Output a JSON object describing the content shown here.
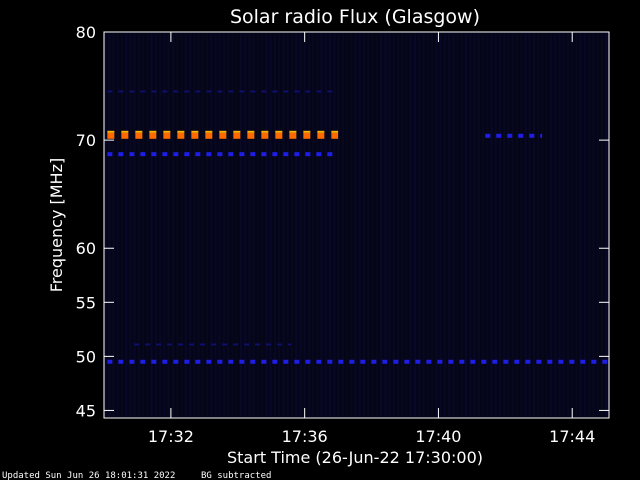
{
  "colors": {
    "background": "#000000",
    "plot_background": "#05051a",
    "axis": "#ffffff",
    "text": "#ffffff",
    "dark_blue": "#0f0f6e",
    "blue": "#1e1ee6",
    "purple": "#5a1ea8",
    "orange": "#ff6a00"
  },
  "chart_data": {
    "type": "heatmap",
    "title": "Solar radio Flux (Glasgow)",
    "xlabel": "Start Time (26-Jun-22 17:30:00)",
    "ylabel": "Frequency [MHz]",
    "x_unit": "minutes after 17:30",
    "xlim": [
      0,
      15.1
    ],
    "ylim": [
      80,
      44.3
    ],
    "x_ticks": [
      {
        "value": 2,
        "label": "17:32"
      },
      {
        "value": 6,
        "label": "17:36"
      },
      {
        "value": 10,
        "label": "17:40"
      },
      {
        "value": 14,
        "label": "17:44"
      }
    ],
    "y_ticks": [
      {
        "value": 45,
        "label": "45"
      },
      {
        "value": 50,
        "label": "50"
      },
      {
        "value": 55,
        "label": "55"
      },
      {
        "value": 60,
        "label": "60"
      },
      {
        "value": 70,
        "label": "70"
      },
      {
        "value": 80,
        "label": "80"
      }
    ],
    "emission_bands": [
      {
        "freq": 49.5,
        "t_start": 0.1,
        "t_end": 15.1,
        "intensity": "blue"
      },
      {
        "freq": 51.1,
        "t_start": 0.9,
        "t_end": 5.6,
        "intensity": "dark_blue"
      },
      {
        "freq": 68.7,
        "t_start": 0.1,
        "t_end": 7.0,
        "intensity": "blue"
      },
      {
        "freq": 70.4,
        "t_start": 0.1,
        "t_end": 7.0,
        "intensity": "orange"
      },
      {
        "freq": 70.4,
        "t_start": 11.4,
        "t_end": 13.1,
        "intensity": "blue"
      },
      {
        "freq": 74.5,
        "t_start": 0.1,
        "t_end": 7.0,
        "intensity": "dark_blue"
      }
    ]
  },
  "footer": {
    "updated": "Updated Sun Jun 26 18:01:31 2022",
    "note": "BG subtracted"
  }
}
